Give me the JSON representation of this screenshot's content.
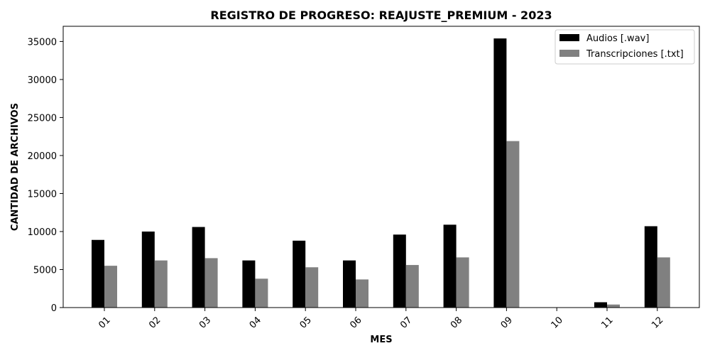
{
  "chart_data": {
    "type": "bar",
    "title": "REGISTRO DE PROGRESO: REAJUSTE_PREMIUM - 2023",
    "xlabel": "MES",
    "ylabel": "CANTIDAD DE ARCHIVOS",
    "categories": [
      "01",
      "02",
      "03",
      "04",
      "05",
      "06",
      "07",
      "08",
      "09",
      "10",
      "11",
      "12"
    ],
    "series": [
      {
        "name": "Audios [.wav]",
        "color": "#000000",
        "values": [
          8900,
          10000,
          10600,
          6200,
          8800,
          6200,
          9600,
          10900,
          35400,
          0,
          700,
          10700
        ]
      },
      {
        "name": "Transcripciones [.txt]",
        "color": "#808080",
        "values": [
          5500,
          6200,
          6500,
          3800,
          5300,
          3700,
          5600,
          6600,
          21900,
          0,
          400,
          6600
        ]
      }
    ],
    "ylim": [
      0,
      37000
    ],
    "yticks": [
      0,
      5000,
      10000,
      15000,
      20000,
      25000,
      30000,
      35000
    ],
    "legend_position": "top-right",
    "grid": false
  }
}
